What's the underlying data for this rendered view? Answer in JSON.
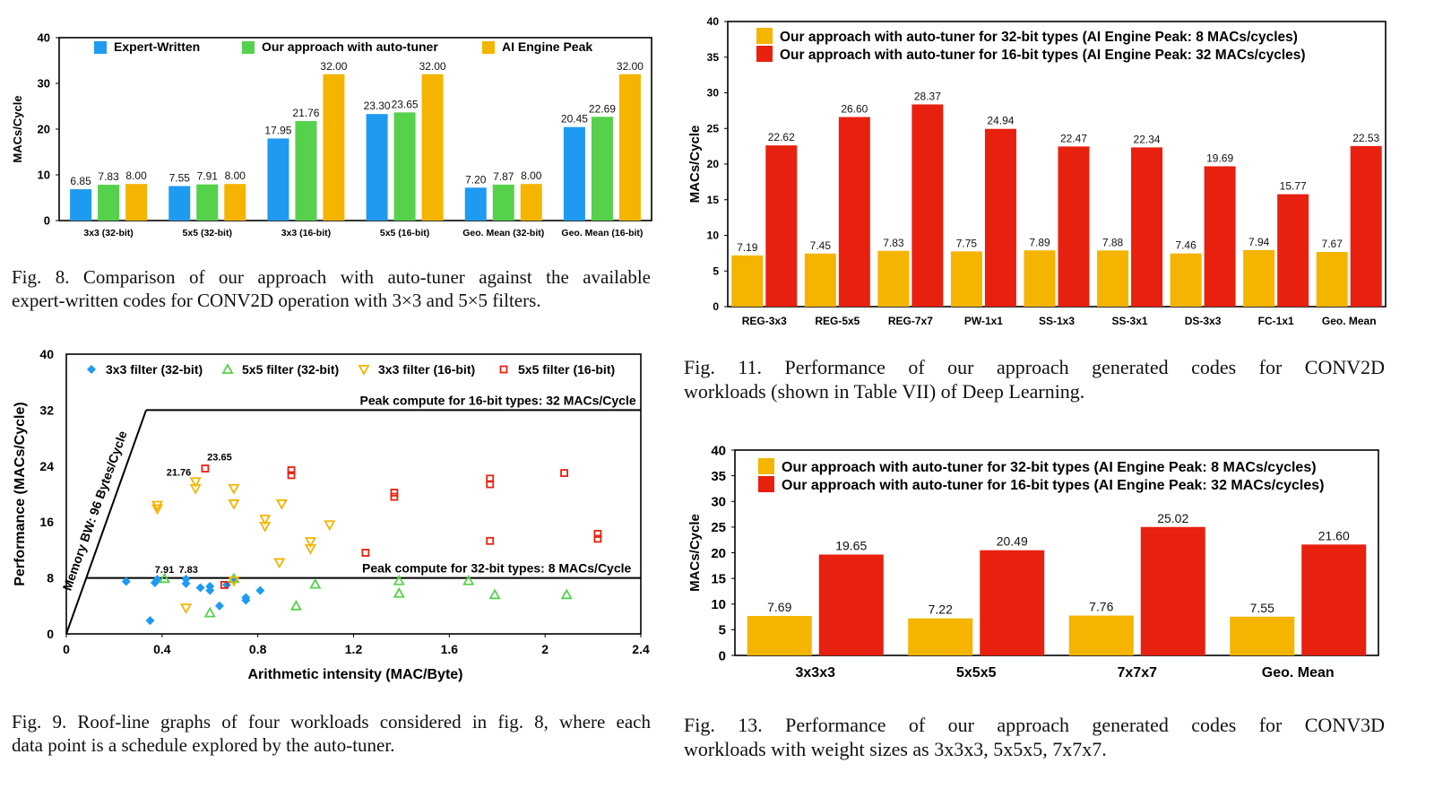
{
  "colors": {
    "blue": "#1e9bf0",
    "green": "#55d14b",
    "orange": "#f4b400",
    "red": "#e8200f",
    "frame": "#000000"
  },
  "captions": {
    "fig8": [
      "Fig. 8.  Comparison of our approach with auto-tuner against the available",
      "expert-written codes for CONV2D operation with 3×3 and 5×5 filters."
    ],
    "fig9": [
      "Fig. 9.  Roof-line graphs of four workloads considered in fig. 8, where each",
      "data point is a schedule explored by the auto-tuner."
    ],
    "fig11": [
      "Fig. 11.   Performance of our approach generated codes for CONV2D",
      "workloads (shown in Table VII) of Deep Learning."
    ],
    "fig13": [
      "Fig. 13.   Performance of our approach generated codes for CONV3D",
      "workloads with weight sizes as 3x3x3, 5x5x5, 7x7x7."
    ]
  },
  "chart_data": [
    {
      "id": "fig8",
      "type": "bar",
      "ylabel": "MACs/Cycle",
      "ylim": [
        0,
        40
      ],
      "yticks": [
        0,
        10,
        20,
        30,
        40
      ],
      "legend_position": "top",
      "categories": [
        "3x3 (32-bit)",
        "5x5 (32-bit)",
        "3x3 (16-bit)",
        "5x5 (16-bit)",
        "Geo. Mean (32-bit)",
        "Geo. Mean (16-bit)"
      ],
      "series": [
        {
          "name": "Expert-Written",
          "color": "#1e9bf0",
          "values": [
            6.85,
            7.55,
            17.95,
            23.3,
            7.2,
            20.45
          ],
          "labels": [
            "6.85",
            "7.55",
            "17.95",
            "23.30",
            "7.20",
            "20.45"
          ]
        },
        {
          "name": "Our approach with auto-tuner",
          "color": "#55d14b",
          "values": [
            7.83,
            7.91,
            21.76,
            23.65,
            7.87,
            22.69
          ],
          "labels": [
            "7.83",
            "7.91",
            "21.76",
            "23.65",
            "7.87",
            "22.69"
          ]
        },
        {
          "name": "AI Engine Peak",
          "color": "#f4b400",
          "values": [
            8.0,
            8.0,
            32.0,
            32.0,
            8.0,
            32.0
          ],
          "labels": [
            "8.00",
            "8.00",
            "32.00",
            "32.00",
            "8.00",
            "32.00"
          ]
        }
      ]
    },
    {
      "id": "fig11",
      "type": "bar",
      "ylabel": "MACs/Cycle",
      "ylim": [
        0,
        40
      ],
      "yticks": [
        0,
        5,
        10,
        15,
        20,
        25,
        30,
        35,
        40
      ],
      "legend_position": "top",
      "categories": [
        "REG-3x3",
        "REG-5x5",
        "REG-7x7",
        "PW-1x1",
        "SS-1x3",
        "SS-3x1",
        "DS-3x3",
        "FC-1x1",
        "Geo. Mean"
      ],
      "series": [
        {
          "name": "Our approach with auto-tuner for 32-bit types (AI Engine Peak: 8 MACs/cycles)",
          "color": "#f4b400",
          "values": [
            7.19,
            7.45,
            7.83,
            7.75,
            7.89,
            7.88,
            7.46,
            7.94,
            7.67
          ],
          "labels": [
            "7.19",
            "7.45",
            "7.83",
            "7.75",
            "7.89",
            "7.88",
            "7.46",
            "7.94",
            "7.67"
          ]
        },
        {
          "name": "Our approach with auto-tuner for 16-bit types (AI Engine Peak: 32 MACs/cycles)",
          "color": "#e8200f",
          "values": [
            22.62,
            26.6,
            28.37,
            24.94,
            22.47,
            22.34,
            19.69,
            15.77,
            22.53
          ],
          "labels": [
            "22.62",
            "26.60",
            "28.37",
            "24.94",
            "22.47",
            "22.34",
            "19.69",
            "15.77",
            "22.53"
          ]
        }
      ]
    },
    {
      "id": "fig13",
      "type": "bar",
      "ylabel": "MACs/Cycle",
      "ylim": [
        0,
        40
      ],
      "yticks": [
        0,
        5,
        10,
        15,
        20,
        25,
        30,
        35,
        40
      ],
      "legend_position": "top",
      "categories": [
        "3x3x3",
        "5x5x5",
        "7x7x7",
        "Geo. Mean"
      ],
      "series": [
        {
          "name": "Our approach with auto-tuner for 32-bit types (AI Engine Peak: 8 MACs/cycles)",
          "color": "#f4b400",
          "values": [
            7.69,
            7.22,
            7.76,
            7.55
          ],
          "labels": [
            "7.69",
            "7.22",
            "7.76",
            "7.55"
          ]
        },
        {
          "name": "Our approach with auto-tuner for 16-bit types (AI Engine Peak: 32 MACs/cycles)",
          "color": "#e8200f",
          "values": [
            19.65,
            20.49,
            25.02,
            21.6
          ],
          "labels": [
            "19.65",
            "20.49",
            "25.02",
            "21.60"
          ]
        }
      ]
    },
    {
      "id": "fig9",
      "type": "scatter",
      "xlabel": "Arithmetic intensity (MAC/Byte)",
      "ylabel": "Performance (MACs/Cycle)",
      "xlim": [
        0,
        2.4
      ],
      "ylim": [
        0,
        40
      ],
      "xticks": [
        0,
        0.4,
        0.8,
        1.2,
        1.6,
        2,
        2.4
      ],
      "xtick_labels": [
        "0",
        "0.4",
        "0.8",
        "1.2",
        "1.6",
        "2",
        "2.4"
      ],
      "yticks": [
        0,
        8,
        16,
        24,
        32,
        40
      ],
      "legend_position": "top",
      "roofline": {
        "memory_label": "Memory BW: 96 Bytes/Cycle",
        "bandwidth": 96,
        "peaks": [
          {
            "value": 32,
            "label": "Peak compute for 16-bit types: 32 MACs/Cycle"
          },
          {
            "value": 8,
            "label": "Peak compute for 32-bit types: 8 MACs/Cycle"
          }
        ]
      },
      "annotations": [
        {
          "text": "23.65",
          "x": 0.64,
          "y": 24.8
        },
        {
          "text": "21.76",
          "x": 0.47,
          "y": 22.6
        },
        {
          "text": "7.91",
          "x": 0.41,
          "y": 8.7
        },
        {
          "text": "7.83",
          "x": 0.51,
          "y": 8.7
        }
      ],
      "series": [
        {
          "name": "3x3 filter (32-bit)",
          "marker": "diamond",
          "color": "#1e9bf0",
          "points": [
            [
              0.25,
              7.5
            ],
            [
              0.37,
              7.3
            ],
            [
              0.38,
              7.8
            ],
            [
              0.5,
              7.83
            ],
            [
              0.5,
              7.2
            ],
            [
              0.56,
              6.6
            ],
            [
              0.6,
              6.2
            ],
            [
              0.6,
              6.8
            ],
            [
              0.64,
              4.0
            ],
            [
              0.67,
              7.0
            ],
            [
              0.7,
              7.6
            ],
            [
              0.75,
              5.2
            ],
            [
              0.75,
              4.8
            ],
            [
              0.81,
              6.2
            ],
            [
              0.35,
              1.9
            ]
          ]
        },
        {
          "name": "5x5 filter (32-bit)",
          "marker": "triangle",
          "color": "#55d14b",
          "points": [
            [
              0.41,
              7.91
            ],
            [
              0.6,
              3.0
            ],
            [
              0.7,
              7.9
            ],
            [
              0.96,
              4.0
            ],
            [
              1.04,
              7.1
            ],
            [
              1.39,
              7.6
            ],
            [
              1.39,
              5.8
            ],
            [
              1.68,
              7.6
            ],
            [
              1.79,
              5.6
            ],
            [
              2.09,
              5.6
            ]
          ]
        },
        {
          "name": "3x3 filter (16-bit)",
          "marker": "triangle-down",
          "color": "#f4b400",
          "points": [
            [
              0.38,
              18.4
            ],
            [
              0.38,
              17.9
            ],
            [
              0.54,
              21.76
            ],
            [
              0.54,
              20.8
            ],
            [
              0.7,
              20.8
            ],
            [
              0.7,
              18.6
            ],
            [
              0.7,
              7.6
            ],
            [
              0.5,
              3.7
            ],
            [
              0.83,
              16.4
            ],
            [
              0.83,
              15.4
            ],
            [
              0.9,
              18.6
            ],
            [
              0.89,
              10.2
            ],
            [
              1.02,
              13.2
            ],
            [
              1.02,
              12.2
            ],
            [
              1.1,
              15.6
            ]
          ]
        },
        {
          "name": "5x5 filter (16-bit)",
          "marker": "square",
          "color": "#e8200f",
          "points": [
            [
              0.58,
              23.65
            ],
            [
              0.66,
              7.0
            ],
            [
              0.94,
              23.4
            ],
            [
              0.94,
              22.7
            ],
            [
              1.25,
              11.6
            ],
            [
              1.37,
              20.2
            ],
            [
              1.37,
              19.6
            ],
            [
              1.77,
              22.2
            ],
            [
              1.77,
              21.4
            ],
            [
              1.77,
              13.3
            ],
            [
              2.08,
              23.0
            ],
            [
              2.22,
              14.3
            ],
            [
              2.22,
              13.6
            ]
          ]
        }
      ]
    }
  ]
}
